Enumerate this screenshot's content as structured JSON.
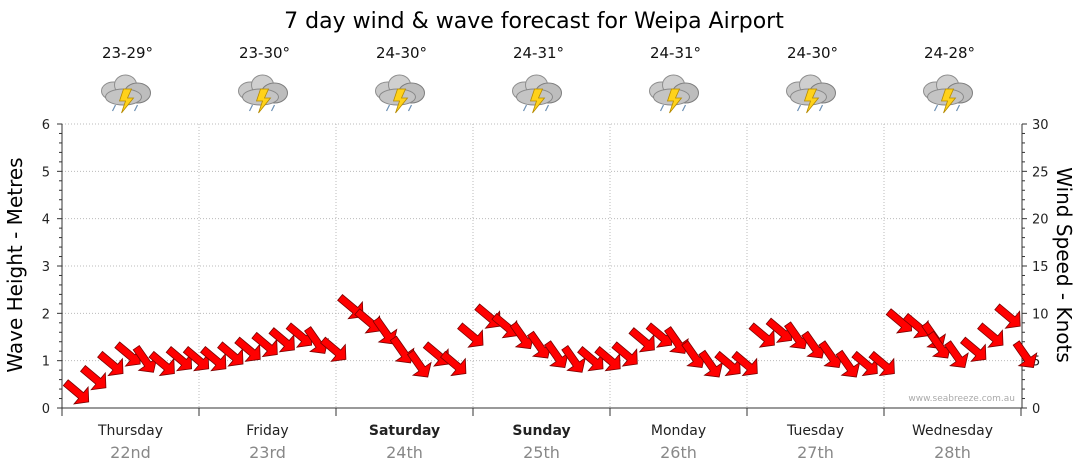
{
  "title": "7 day wind & wave forecast for Weipa Airport",
  "credit": "www.seabreeze.com.au",
  "colors": {
    "arrow": "#ff0000",
    "arrow_edge": "#7a0000",
    "grid": "#bbbbbb",
    "axis": "#333333"
  },
  "days": [
    {
      "name": "Thursday",
      "date": "22nd",
      "temp": "23-29°",
      "bold": false,
      "icon": "thunderstorm-icon"
    },
    {
      "name": "Friday",
      "date": "23rd",
      "temp": "23-30°",
      "bold": false,
      "icon": "thunderstorm-icon"
    },
    {
      "name": "Saturday",
      "date": "24th",
      "temp": "24-30°",
      "bold": true,
      "icon": "thunderstorm-icon"
    },
    {
      "name": "Sunday",
      "date": "25th",
      "temp": "24-31°",
      "bold": true,
      "icon": "thunderstorm-icon"
    },
    {
      "name": "Monday",
      "date": "26th",
      "temp": "24-31°",
      "bold": false,
      "icon": "thunderstorm-icon"
    },
    {
      "name": "Tuesday",
      "date": "27th",
      "temp": "24-30°",
      "bold": false,
      "icon": "thunderstorm-icon"
    },
    {
      "name": "Wednesday",
      "date": "28th",
      "temp": "24-28°",
      "bold": false,
      "icon": "thunderstorm-icon"
    }
  ],
  "chart_data": {
    "type": "line",
    "title": "7 day wind & wave forecast for Weipa Airport",
    "ylabel_left": "Wave Height - Metres",
    "ylabel_right": "Wind Speed - Knots",
    "ylim_left": [
      0,
      6
    ],
    "ylim_right": [
      0,
      30
    ],
    "yticks_left": [
      "0",
      "1",
      "2",
      "3",
      "4",
      "5",
      "6"
    ],
    "yticks_right": [
      "0",
      "5",
      "10",
      "15",
      "20",
      "25",
      "30"
    ],
    "x_unit": "hours from start of Thursday",
    "xlim": [
      -2,
      166
    ],
    "series": [
      {
        "name": "Wind Speed",
        "marker": "arrow",
        "x": [
          0,
          3,
          6,
          9,
          12,
          15,
          18,
          21,
          24,
          27,
          30,
          33,
          36,
          39,
          42,
          45,
          48,
          51,
          54,
          57,
          60,
          63,
          66,
          69,
          72,
          75,
          78,
          81,
          84,
          87,
          90,
          93,
          96,
          99,
          102,
          105,
          108,
          111,
          114,
          117,
          120,
          123,
          126,
          129,
          132,
          135,
          138,
          141,
          144,
          147,
          150,
          151,
          154,
          157,
          160,
          163,
          166
        ],
        "values": [
          2,
          3.5,
          5,
          6,
          5.5,
          5,
          5.5,
          5.5,
          5.5,
          6,
          6.5,
          7,
          7.5,
          8,
          7.5,
          6.5,
          11,
          9.5,
          8.5,
          6.5,
          5,
          6,
          5,
          8,
          10,
          9,
          8,
          7,
          6,
          5.5,
          5.5,
          5.5,
          6,
          7.5,
          8,
          7.5,
          6,
          5,
          5,
          5,
          8,
          8.5,
          8,
          7,
          6,
          5,
          5,
          5,
          9.5,
          9,
          8,
          7,
          6,
          6.5,
          8,
          10,
          6
        ]
      }
    ]
  }
}
